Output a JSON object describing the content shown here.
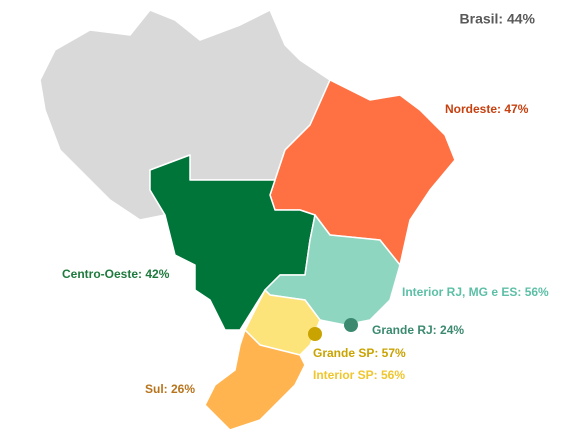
{
  "title": "Brasil: 44%",
  "labels": [
    {
      "text": "Nordeste: 47%",
      "color": "#c7400f"
    },
    {
      "text": "Centro-Oeste: 42%",
      "color": "#1f7a3d"
    },
    {
      "text": "Interior RJ, MG e ES: 56%",
      "color": "#5cbfa6"
    },
    {
      "text": "Grande RJ: 24%",
      "color": "#3b8a70"
    },
    {
      "text": "Grande SP: 57%",
      "color": "#c9a300"
    },
    {
      "text": "Interior SP: 56%",
      "color": "#efc62e"
    },
    {
      "text": "Sul: 26%",
      "color": "#b8741d"
    }
  ]
}
